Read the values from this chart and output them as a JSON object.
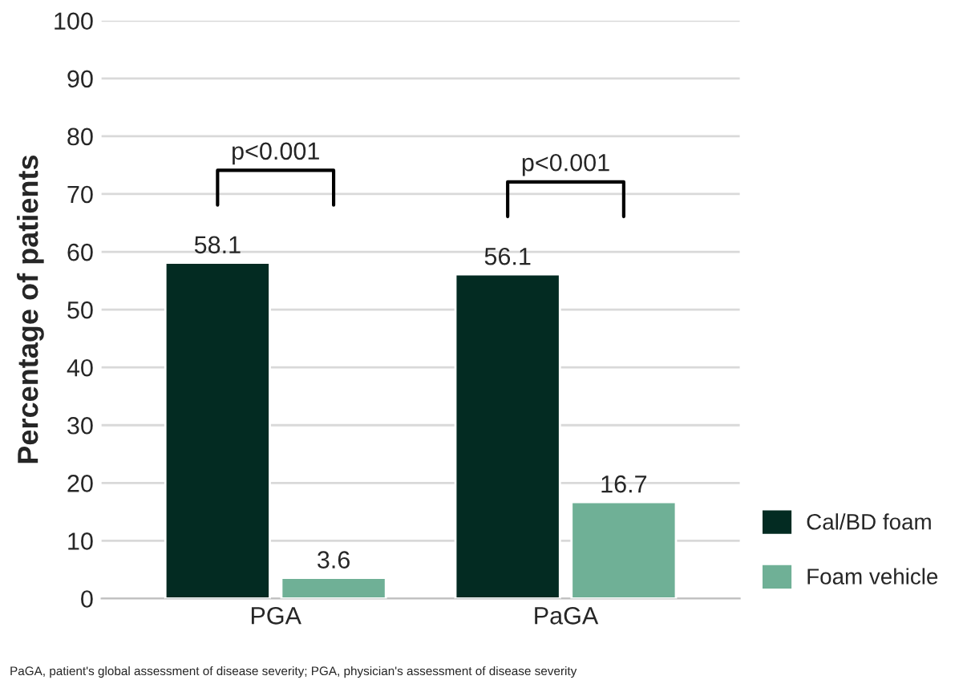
{
  "chart_data": {
    "type": "bar",
    "ylabel": "Percentage of patients",
    "categories": [
      "PGA",
      "PaGA"
    ],
    "series": [
      {
        "name": "Cal/BD foam",
        "color": "#032b22",
        "values": [
          58.1,
          56.1
        ]
      },
      {
        "name": "Foam vehicle",
        "color": "#6fb096",
        "values": [
          3.6,
          16.7
        ]
      }
    ],
    "ylim": [
      0,
      100
    ],
    "yticks": [
      0,
      10,
      20,
      30,
      40,
      50,
      60,
      70,
      80,
      90,
      100
    ],
    "grid": "y",
    "data_labels": true,
    "legend": "bottom right",
    "annotations": [
      "p<0.001",
      "p<0.001",
      "PaGA, patient's global assessment of disease severity; PGA, physician's assessment of disease severity"
    ]
  }
}
